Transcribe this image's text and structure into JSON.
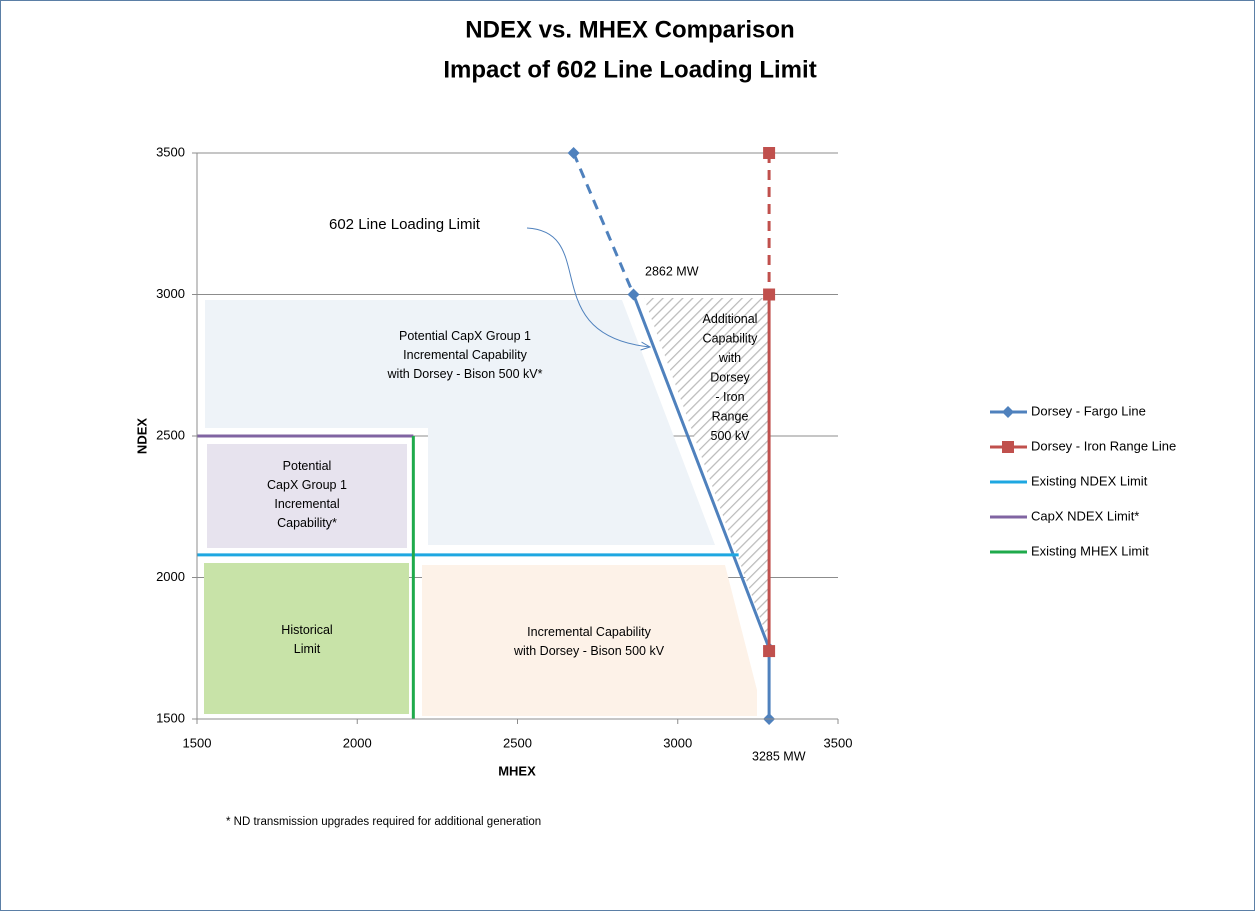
{
  "chart_data": {
    "type": "line",
    "title": [
      "NDEX vs. MHEX Comparison",
      "Impact of 602 Line Loading Limit"
    ],
    "x_label": "MHEX",
    "y_label": "NDEX",
    "xlim": [
      1500,
      3500
    ],
    "ylim": [
      1500,
      3500
    ],
    "xticks": [
      1500,
      2000,
      2500,
      3000,
      3500
    ],
    "yticks": [
      1500,
      2000,
      2500,
      3000,
      3500
    ],
    "grid": true,
    "legend": "right",
    "series": [
      {
        "name": "Dorsey - Fargo Line",
        "color": "#4f81bd",
        "marker": "diamond",
        "dashed_until": 1,
        "x": [
          2675,
          2862,
          3285,
          3285
        ],
        "values": [
          3500,
          3000,
          1750,
          1500
        ]
      },
      {
        "name": "Dorsey - Iron Range Line",
        "color": "#c0504d",
        "marker": "square",
        "dashed_until": 1,
        "x": [
          3285,
          3285,
          3285
        ],
        "values": [
          3500,
          3000,
          1740
        ]
      },
      {
        "name": "Existing NDEX Limit",
        "color": "#1ea7e1",
        "x": [
          1500,
          3190
        ],
        "values": [
          2080,
          2080
        ]
      },
      {
        "name": "CapX NDEX Limit*",
        "color": "#8064a2",
        "x": [
          1500,
          2175
        ],
        "values": [
          2500,
          2500
        ]
      },
      {
        "name": "Existing MHEX Limit",
        "color": "#1faa4b",
        "x": [
          2175,
          2175
        ],
        "values": [
          1500,
          2500
        ]
      }
    ],
    "annotations": {
      "loading_limit": "602 Line Loading Limit",
      "mw_2862": "2862 MW",
      "mw_3285": "3285 MW",
      "capx_bison": [
        "Potential  CapX Group 1",
        "Incremental Capability",
        "with Dorsey - Bison 500 kV*"
      ],
      "capx_group1": [
        "Potential",
        "CapX Group 1",
        "Incremental",
        "Capability*"
      ],
      "historical": [
        "Historical",
        "Limit"
      ],
      "incremental": [
        "Incremental Capability",
        "with Dorsey - Bison 500 kV"
      ],
      "iron_range": [
        "Additional",
        "Capability",
        "with",
        "Dorsey",
        "- Iron",
        "Range",
        "500 kV"
      ],
      "footnote": "* ND transmission  upgrades required for additional generation"
    }
  }
}
